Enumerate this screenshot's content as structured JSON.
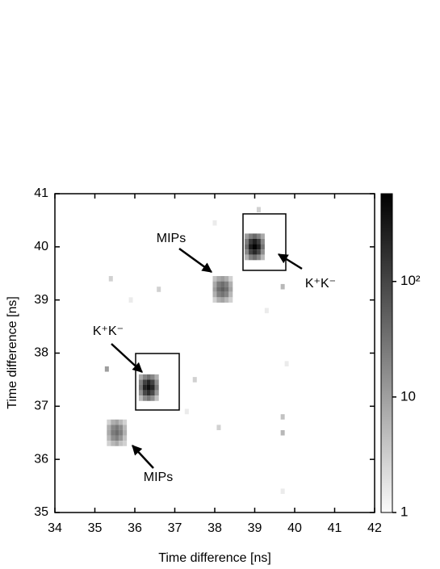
{
  "chart_data": {
    "type": "heatmap",
    "xlabel": "Time difference [ns]",
    "ylabel": "Time difference [ns]",
    "xlim": [
      34,
      42
    ],
    "xticks": [
      34,
      35,
      36,
      37,
      38,
      39,
      40,
      41,
      42
    ],
    "ylim": [
      35,
      41
    ],
    "yticks": [
      35,
      36,
      37,
      38,
      39,
      40,
      41
    ],
    "colorbar": {
      "log": true,
      "clim": [
        1,
        575
      ],
      "ticks": [
        1,
        10,
        {
          "value": 100,
          "label": "10²"
        }
      ]
    },
    "cells": [
      [
        38.8,
        40.2,
        8
      ],
      [
        38.9,
        40.2,
        20
      ],
      [
        39.0,
        40.2,
        35
      ],
      [
        39.1,
        40.2,
        18
      ],
      [
        39.2,
        40.2,
        6
      ],
      [
        38.8,
        40.1,
        20
      ],
      [
        38.9,
        40.1,
        120
      ],
      [
        39.0,
        40.1,
        250
      ],
      [
        39.1,
        40.1,
        110
      ],
      [
        39.2,
        40.1,
        15
      ],
      [
        38.8,
        40.0,
        30
      ],
      [
        38.9,
        40.0,
        260
      ],
      [
        39.0,
        40.0,
        520
      ],
      [
        39.1,
        40.0,
        240
      ],
      [
        39.2,
        40.0,
        25
      ],
      [
        38.8,
        39.9,
        15
      ],
      [
        38.9,
        39.9,
        100
      ],
      [
        39.0,
        39.9,
        200
      ],
      [
        39.1,
        39.9,
        90
      ],
      [
        39.2,
        39.9,
        12
      ],
      [
        38.8,
        39.8,
        5
      ],
      [
        38.9,
        39.8,
        18
      ],
      [
        39.0,
        39.8,
        30
      ],
      [
        39.1,
        39.8,
        15
      ],
      [
        39.2,
        39.8,
        4
      ],
      [
        36.15,
        37.55,
        6
      ],
      [
        36.25,
        37.55,
        16
      ],
      [
        36.35,
        37.55,
        28
      ],
      [
        36.45,
        37.55,
        15
      ],
      [
        36.55,
        37.55,
        5
      ],
      [
        36.15,
        37.45,
        18
      ],
      [
        36.25,
        37.45,
        100
      ],
      [
        36.35,
        37.45,
        210
      ],
      [
        36.45,
        37.45,
        95
      ],
      [
        36.55,
        37.45,
        12
      ],
      [
        36.15,
        37.35,
        25
      ],
      [
        36.25,
        37.35,
        220
      ],
      [
        36.35,
        37.35,
        380
      ],
      [
        36.45,
        37.35,
        200
      ],
      [
        36.55,
        37.35,
        20
      ],
      [
        36.15,
        37.25,
        12
      ],
      [
        36.25,
        37.25,
        85
      ],
      [
        36.35,
        37.25,
        170
      ],
      [
        36.45,
        37.25,
        80
      ],
      [
        36.55,
        37.25,
        10
      ],
      [
        36.15,
        37.15,
        4
      ],
      [
        36.25,
        37.15,
        14
      ],
      [
        36.35,
        37.15,
        24
      ],
      [
        36.45,
        37.15,
        12
      ],
      [
        36.55,
        37.15,
        3
      ],
      [
        38.0,
        39.4,
        3
      ],
      [
        38.1,
        39.4,
        6
      ],
      [
        38.2,
        39.4,
        8
      ],
      [
        38.3,
        39.4,
        5
      ],
      [
        38.4,
        39.4,
        2
      ],
      [
        38.0,
        39.3,
        6
      ],
      [
        38.1,
        39.3,
        20
      ],
      [
        38.2,
        39.3,
        30
      ],
      [
        38.3,
        39.3,
        18
      ],
      [
        38.4,
        39.3,
        5
      ],
      [
        38.0,
        39.2,
        8
      ],
      [
        38.1,
        39.2,
        30
      ],
      [
        38.2,
        39.2,
        45
      ],
      [
        38.3,
        39.2,
        28
      ],
      [
        38.4,
        39.2,
        7
      ],
      [
        38.0,
        39.1,
        5
      ],
      [
        38.1,
        39.1,
        18
      ],
      [
        38.2,
        39.1,
        26
      ],
      [
        38.3,
        39.1,
        16
      ],
      [
        38.4,
        39.1,
        4
      ],
      [
        38.0,
        39.0,
        2
      ],
      [
        38.1,
        39.0,
        5
      ],
      [
        38.2,
        39.0,
        7
      ],
      [
        38.3,
        39.0,
        4
      ],
      [
        38.4,
        39.0,
        2
      ],
      [
        35.35,
        36.7,
        2
      ],
      [
        35.45,
        36.7,
        5
      ],
      [
        35.55,
        36.7,
        7
      ],
      [
        35.65,
        36.7,
        4
      ],
      [
        35.75,
        36.7,
        2
      ],
      [
        35.35,
        36.6,
        5
      ],
      [
        35.45,
        36.6,
        15
      ],
      [
        35.55,
        36.6,
        22
      ],
      [
        35.65,
        36.6,
        13
      ],
      [
        35.75,
        36.6,
        4
      ],
      [
        35.35,
        36.5,
        6
      ],
      [
        35.45,
        36.5,
        20
      ],
      [
        35.55,
        36.5,
        30
      ],
      [
        35.65,
        36.5,
        18
      ],
      [
        35.75,
        36.5,
        5
      ],
      [
        35.35,
        36.4,
        4
      ],
      [
        35.45,
        36.4,
        12
      ],
      [
        35.55,
        36.4,
        18
      ],
      [
        35.65,
        36.4,
        10
      ],
      [
        35.75,
        36.4,
        3
      ],
      [
        35.35,
        36.3,
        2
      ],
      [
        35.45,
        36.3,
        4
      ],
      [
        35.55,
        36.3,
        6
      ],
      [
        35.65,
        36.3,
        3
      ],
      [
        35.75,
        36.3,
        2
      ],
      [
        35.3,
        37.7,
        8
      ],
      [
        35.4,
        39.4,
        2
      ],
      [
        35.9,
        39.0,
        1
      ],
      [
        36.6,
        39.2,
        2
      ],
      [
        37.5,
        37.5,
        2
      ],
      [
        38.1,
        36.6,
        2
      ],
      [
        39.3,
        38.8,
        1
      ],
      [
        39.7,
        39.25,
        4
      ],
      [
        39.7,
        36.8,
        3
      ],
      [
        39.7,
        36.5,
        4
      ],
      [
        39.8,
        37.8,
        1
      ],
      [
        39.7,
        35.4,
        1
      ],
      [
        37.3,
        36.9,
        1
      ],
      [
        38.0,
        40.45,
        1
      ],
      [
        39.1,
        40.7,
        2
      ]
    ],
    "annotations": [
      "MIPs",
      "K⁺K⁻",
      "K⁺K⁻",
      "MIPs"
    ]
  }
}
